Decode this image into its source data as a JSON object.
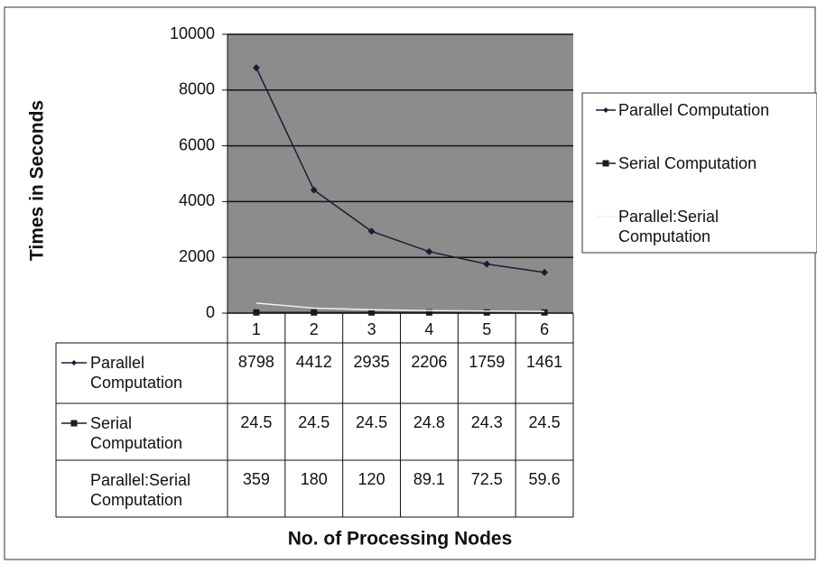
{
  "chart_data": {
    "type": "line",
    "y_label": "Times in Seconds",
    "x_label": "No. of Processing Nodes",
    "categories": [
      "1",
      "2",
      "3",
      "4",
      "5",
      "6"
    ],
    "series": [
      {
        "name": "Parallel Computation",
        "color": "#1c1c3a",
        "marker": "diamond",
        "values": [
          8798,
          4412,
          2935,
          2206,
          1759,
          1461
        ]
      },
      {
        "name": "Serial Computation",
        "color": "#1a1a1a",
        "marker": "square",
        "values": [
          24.5,
          24.5,
          24.5,
          24.8,
          24.3,
          24.5
        ]
      },
      {
        "name": "Parallel:Serial Computation",
        "color": "#f2f2f2",
        "marker": "none",
        "values": [
          359,
          180,
          120,
          89.1,
          72.5,
          59.6
        ]
      }
    ],
    "ylim": [
      0,
      10000
    ],
    "yticks": [
      0,
      2000,
      4000,
      6000,
      8000,
      10000
    ],
    "grid": true,
    "plot_background": "#8c8c8c",
    "legend": "right",
    "data_table": true
  }
}
